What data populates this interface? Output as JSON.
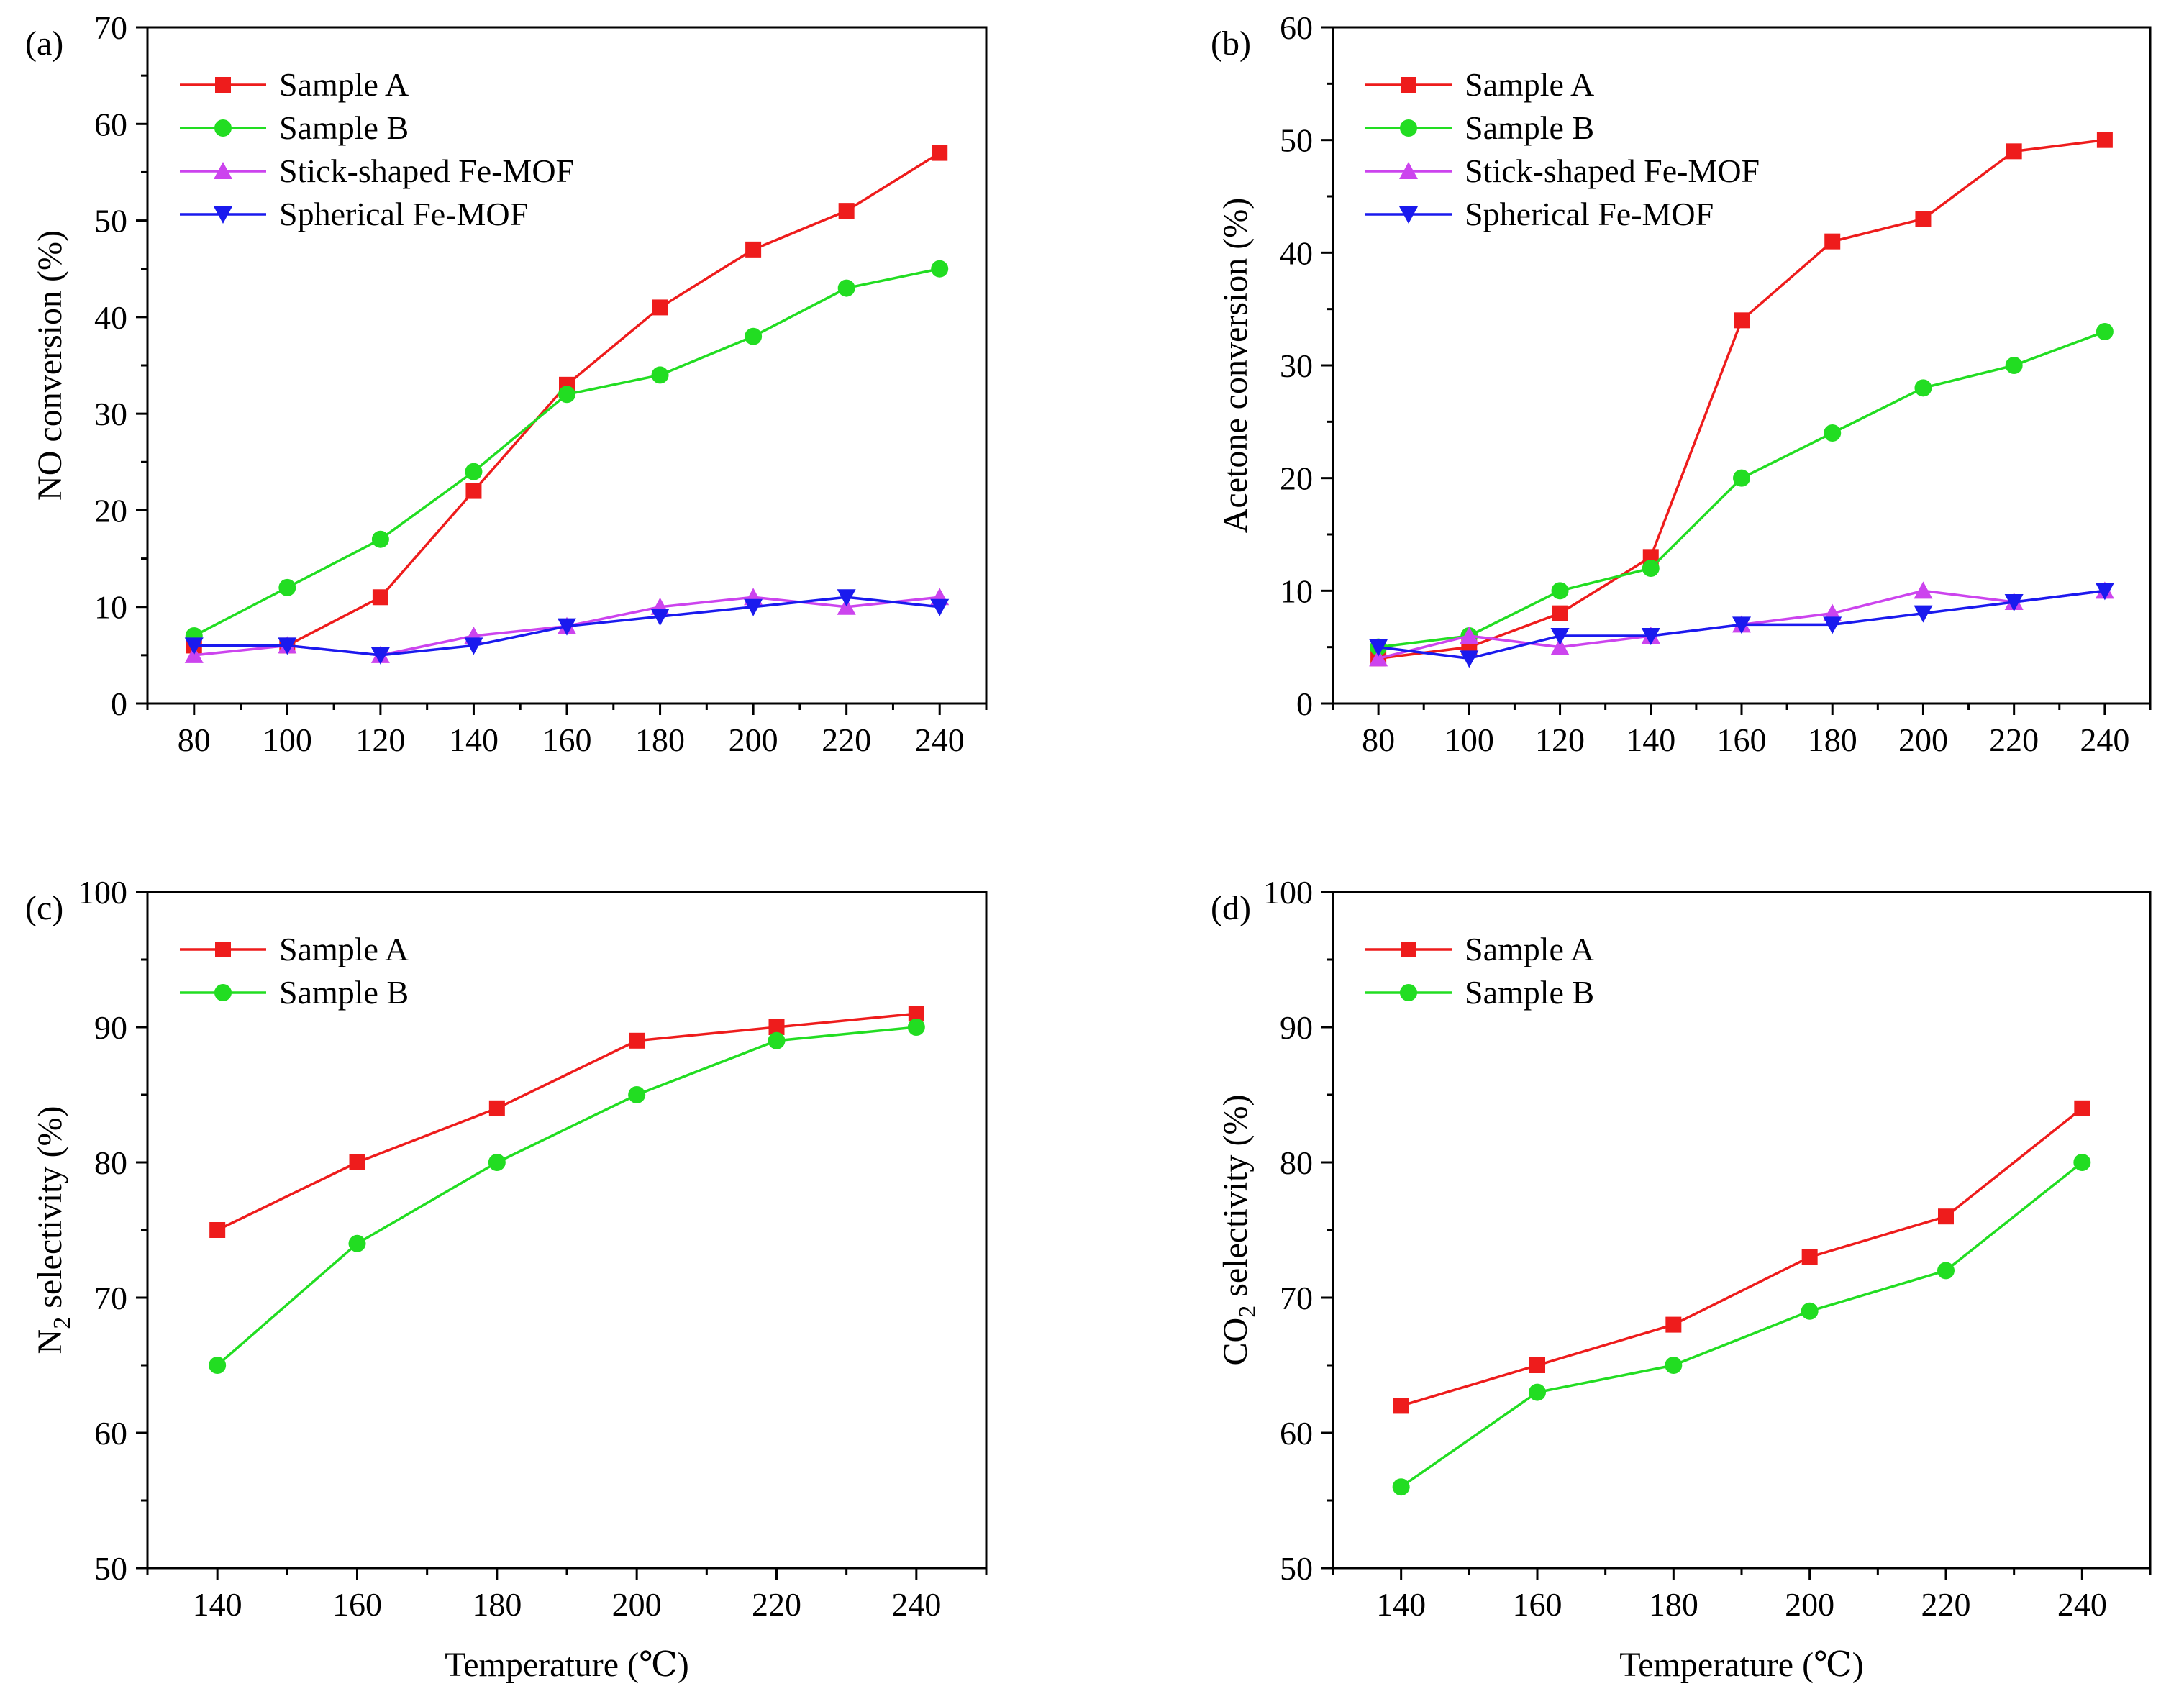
{
  "figure": {
    "description_label": "Four-panel catalytic performance figure",
    "colors": {
      "sample_a": "#ee1c1c",
      "sample_b": "#22dd22",
      "stick": "#cc44ee",
      "spherical": "#1a1aee",
      "axis": "#000000"
    }
  },
  "chart_data": [
    {
      "panel": "(a)",
      "type": "line",
      "title": "",
      "xlabel": "",
      "ylabel": "NO conversion (%)",
      "ylabel_sub": "",
      "ylabel_suffix": "",
      "x": [
        80,
        100,
        120,
        140,
        160,
        180,
        200,
        220,
        240
      ],
      "xlim": [
        70,
        250
      ],
      "ylim": [
        0,
        70
      ],
      "xticks": [
        80,
        100,
        120,
        140,
        160,
        180,
        200,
        220,
        240
      ],
      "yticks": [
        0,
        10,
        20,
        30,
        40,
        50,
        60,
        70
      ],
      "legend": "top-left",
      "series": [
        {
          "name": "Sample A",
          "color": "#ee1c1c",
          "marker": "square",
          "values": [
            6,
            6,
            11,
            22,
            33,
            41,
            47,
            51,
            57
          ]
        },
        {
          "name": "Sample B",
          "color": "#22dd22",
          "marker": "circle",
          "values": [
            7,
            12,
            17,
            24,
            32,
            34,
            38,
            43,
            45
          ]
        },
        {
          "name": "Stick-shaped Fe-MOF",
          "color": "#cc44ee",
          "marker": "triangle-up",
          "values": [
            5,
            6,
            5,
            7,
            8,
            10,
            11,
            10,
            11
          ]
        },
        {
          "name": "Spherical Fe-MOF",
          "color": "#1a1aee",
          "marker": "triangle-down",
          "values": [
            6,
            6,
            5,
            6,
            8,
            9,
            10,
            11,
            10
          ]
        }
      ]
    },
    {
      "panel": "(b)",
      "type": "line",
      "title": "",
      "xlabel": "",
      "ylabel": "Acetone conversion (%)",
      "ylabel_sub": "",
      "ylabel_suffix": "",
      "x": [
        80,
        100,
        120,
        140,
        160,
        180,
        200,
        220,
        240
      ],
      "xlim": [
        70,
        250
      ],
      "ylim": [
        0,
        60
      ],
      "xticks": [
        80,
        100,
        120,
        140,
        160,
        180,
        200,
        220,
        240
      ],
      "yticks": [
        0,
        10,
        20,
        30,
        40,
        50,
        60
      ],
      "legend": "top-left",
      "series": [
        {
          "name": "Sample A",
          "color": "#ee1c1c",
          "marker": "square",
          "values": [
            4,
            5,
            8,
            13,
            34,
            41,
            43,
            49,
            50
          ]
        },
        {
          "name": "Sample B",
          "color": "#22dd22",
          "marker": "circle",
          "values": [
            5,
            6,
            10,
            12,
            20,
            24,
            28,
            30,
            33
          ]
        },
        {
          "name": "Stick-shaped Fe-MOF",
          "color": "#cc44ee",
          "marker": "triangle-up",
          "values": [
            4,
            6,
            5,
            6,
            7,
            8,
            10,
            9,
            10
          ]
        },
        {
          "name": "Spherical Fe-MOF",
          "color": "#1a1aee",
          "marker": "triangle-down",
          "values": [
            5,
            4,
            6,
            6,
            7,
            7,
            8,
            9,
            10
          ]
        }
      ]
    },
    {
      "panel": "(c)",
      "type": "line",
      "title": "",
      "xlabel": "Temperature (℃)",
      "ylabel": "N",
      "ylabel_sub": "2",
      "ylabel_suffix": " selectivity (%)",
      "x": [
        140,
        160,
        180,
        200,
        220,
        240
      ],
      "xlim": [
        130,
        250
      ],
      "ylim": [
        50,
        100
      ],
      "xticks": [
        140,
        160,
        180,
        200,
        220,
        240
      ],
      "yticks": [
        50,
        60,
        70,
        80,
        90,
        100
      ],
      "legend": "top-left",
      "series": [
        {
          "name": "Sample A",
          "color": "#ee1c1c",
          "marker": "square",
          "values": [
            75,
            80,
            84,
            89,
            90,
            91
          ]
        },
        {
          "name": "Sample B",
          "color": "#22dd22",
          "marker": "circle",
          "values": [
            65,
            74,
            80,
            85,
            89,
            90
          ]
        }
      ]
    },
    {
      "panel": "(d)",
      "type": "line",
      "title": "",
      "xlabel": "Temperature (℃)",
      "ylabel": "CO",
      "ylabel_sub": "2",
      "ylabel_suffix": " selectivity (%)",
      "x": [
        140,
        160,
        180,
        200,
        220,
        240
      ],
      "xlim": [
        130,
        250
      ],
      "ylim": [
        50,
        100
      ],
      "xticks": [
        140,
        160,
        180,
        200,
        220,
        240
      ],
      "yticks": [
        50,
        60,
        70,
        80,
        90,
        100
      ],
      "legend": "top-left",
      "series": [
        {
          "name": "Sample A",
          "color": "#ee1c1c",
          "marker": "square",
          "values": [
            62,
            65,
            68,
            73,
            76,
            84
          ]
        },
        {
          "name": "Sample B",
          "color": "#22dd22",
          "marker": "circle",
          "values": [
            56,
            63,
            65,
            69,
            72,
            80
          ]
        }
      ]
    }
  ]
}
